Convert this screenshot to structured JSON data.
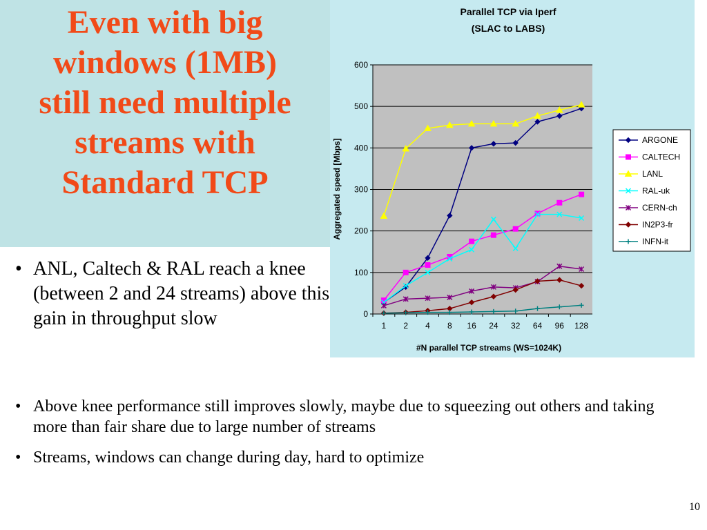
{
  "slide": {
    "title_line1": "Even with big",
    "title_line2": "windows (1MB)",
    "title_line3": "still need multiple",
    "title_line4": "streams with",
    "title_bold": "Standard",
    "title_tail": " TCP",
    "bullets_top": [
      "ANL, Caltech & RAL reach a knee (between 2 and 24 streams) above this gain in throughput slow"
    ],
    "bullets_bottom": [
      "Above knee performance still improves slowly, maybe due to squeezing out others and taking more than fair share due to large number of streams",
      "Streams, windows can change during day, hard to optimize"
    ],
    "page_number": "10"
  },
  "chart_data": {
    "type": "line",
    "title": "Parallel TCP via Iperf",
    "subtitle": "(SLAC to LABS)",
    "xlabel": "#N parallel TCP streams (WS=1024K)",
    "ylabel": "Aggregated speed [Mbps]",
    "ylim": [
      0,
      600
    ],
    "yticks": [
      0,
      100,
      200,
      300,
      400,
      500,
      600
    ],
    "categories": [
      "1",
      "2",
      "4",
      "8",
      "16",
      "24",
      "32",
      "64",
      "96",
      "128"
    ],
    "grid": true,
    "legend_position": "right",
    "plot_bg": "#c0c0c0",
    "series": [
      {
        "name": "ARGONE",
        "color": "#000080",
        "marker": "diamond",
        "values": [
          28,
          65,
          135,
          237,
          400,
          410,
          412,
          463,
          477,
          495
        ]
      },
      {
        "name": "CALTECH",
        "color": "#ff00ff",
        "marker": "square",
        "values": [
          33,
          100,
          118,
          138,
          175,
          190,
          205,
          242,
          268,
          288
        ]
      },
      {
        "name": "LANL",
        "color": "#ffff00",
        "marker": "triangle",
        "values": [
          236,
          398,
          447,
          455,
          458,
          458,
          458,
          477,
          491,
          504
        ]
      },
      {
        "name": "RAL-uk",
        "color": "#00ffff",
        "marker": "x",
        "values": [
          28,
          68,
          100,
          133,
          155,
          228,
          158,
          240,
          240,
          231
        ]
      },
      {
        "name": "CERN-ch",
        "color": "#800080",
        "marker": "star",
        "values": [
          20,
          36,
          38,
          40,
          55,
          65,
          63,
          78,
          115,
          108
        ]
      },
      {
        "name": "IN2P3-fr",
        "color": "#800000",
        "marker": "circle",
        "values": [
          2,
          4,
          8,
          13,
          28,
          42,
          58,
          79,
          82,
          68
        ]
      },
      {
        "name": "INFN-it",
        "color": "#008080",
        "marker": "plus",
        "values": [
          2,
          3,
          4,
          4,
          5,
          6,
          7,
          13,
          17,
          21
        ]
      }
    ]
  }
}
